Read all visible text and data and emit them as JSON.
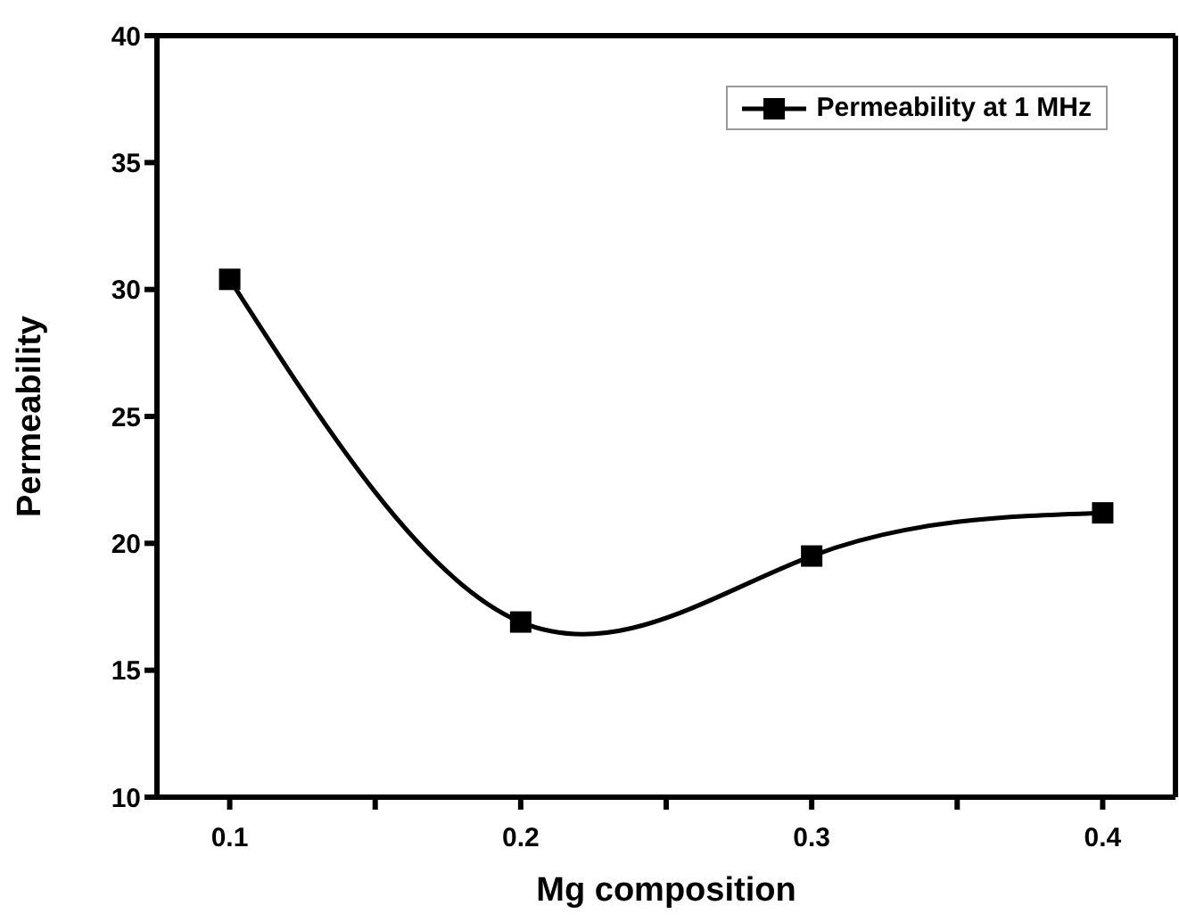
{
  "chart_data": {
    "type": "line",
    "xlabel": "Mg composition",
    "ylabel": "Permeability",
    "x": [
      0.1,
      0.2,
      0.3,
      0.4
    ],
    "series": [
      {
        "name": "Permeability at 1 MHz",
        "color": "#000000",
        "values": [
          30.4,
          16.9,
          19.5,
          21.2
        ]
      }
    ],
    "xlim": [
      0.075,
      0.425
    ],
    "xticks": [
      0.1,
      {
        "value": 0.15,
        "label": null
      },
      0.2,
      {
        "value": 0.25,
        "label": null
      },
      0.3,
      {
        "value": 0.35,
        "label": null
      },
      0.4
    ],
    "ylim": [
      10,
      40
    ],
    "yticks": [
      10,
      15,
      20,
      25,
      30,
      35,
      40
    ],
    "legend": "top right",
    "marker": "square",
    "line_style": "solid"
  }
}
